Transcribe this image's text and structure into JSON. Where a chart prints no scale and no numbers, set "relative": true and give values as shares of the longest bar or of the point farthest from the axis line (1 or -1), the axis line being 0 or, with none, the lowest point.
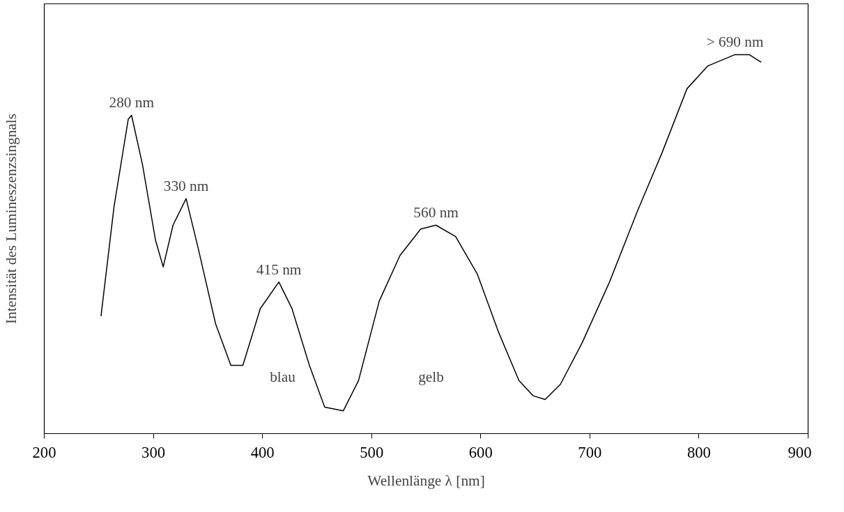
{
  "chart_data": {
    "type": "line",
    "relative": true,
    "xlabel": "Wellenlänge λ [nm]",
    "ylabel": "Intensität des Lumineszenzsingnals",
    "x": [
      252,
      264,
      277,
      280,
      290,
      302,
      309,
      318,
      330,
      341,
      357,
      371,
      382,
      398,
      415,
      427,
      443,
      457,
      474,
      488,
      507,
      526,
      545,
      559,
      577,
      597,
      616,
      635,
      648,
      659,
      673,
      693,
      718,
      744,
      766,
      789,
      808,
      833,
      846,
      857
    ],
    "series": [
      {
        "color": "#000000",
        "values": [
          0.31,
          0.6,
          0.83,
          0.84,
          0.71,
          0.51,
          0.44,
          0.55,
          0.62,
          0.49,
          0.29,
          0.18,
          0.18,
          0.33,
          0.4,
          0.33,
          0.18,
          0.07,
          0.06,
          0.14,
          0.35,
          0.47,
          0.54,
          0.55,
          0.52,
          0.42,
          0.27,
          0.14,
          0.1,
          0.09,
          0.13,
          0.24,
          0.4,
          0.59,
          0.74,
          0.91,
          0.97,
          1.0,
          1.0,
          0.98
        ]
      }
    ],
    "xlim": [
      200,
      900
    ],
    "xticks": [
      200,
      300,
      400,
      500,
      600,
      700,
      800,
      900
    ],
    "grid": false,
    "marker": "none",
    "line_style": "solid",
    "annotations": [
      {
        "text": "280 nm",
        "x": 280,
        "y": 0.84
      },
      {
        "text": "330 nm",
        "x": 330,
        "y": 0.62
      },
      {
        "text": "415 nm",
        "x": 415,
        "y": 0.4
      },
      {
        "text": "560 nm",
        "x": 559,
        "y": 0.55
      },
      {
        "text": "> 690 nm",
        "x": 833,
        "y": 1.0
      },
      "blau",
      "gelb"
    ]
  }
}
